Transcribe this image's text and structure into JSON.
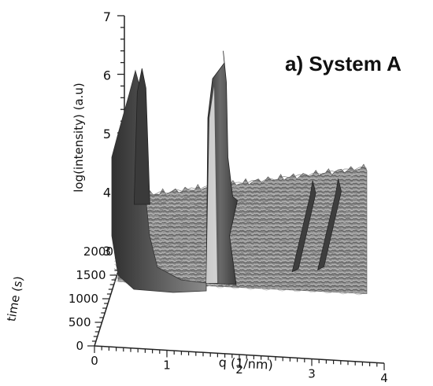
{
  "figure": {
    "panel_label": "a) System A"
  },
  "chart_data": {
    "type": "surface-3d",
    "title": "a) System A",
    "zlabel": "log(intensity) (a.u)",
    "xlabel": "q (1/nm)",
    "ylabel": "time (s)",
    "zlim": [
      3,
      7
    ],
    "xlim": [
      0,
      4
    ],
    "ylim": [
      0,
      2000
    ],
    "z_ticks": [
      "3",
      "4",
      "5",
      "6",
      "7"
    ],
    "x_ticks": [
      "0",
      "1",
      "2",
      "3",
      "4"
    ],
    "y_ticks": [
      "0",
      "500",
      "1000",
      "1500",
      "2000"
    ],
    "peaks": [
      {
        "q": 0.35,
        "log_intensity": 6.1
      },
      {
        "q": 1.5,
        "log_intensity": 6.4
      },
      {
        "q": 3.05,
        "log_intensity": 4.0
      },
      {
        "q": 3.45,
        "log_intensity": 4.1
      }
    ],
    "baseline_log_intensity": 3.8,
    "colors": {
      "surface_light": "#c9c9c9",
      "surface_dark": "#4d4d4d",
      "peak_dark": "#3a3a3a"
    }
  }
}
